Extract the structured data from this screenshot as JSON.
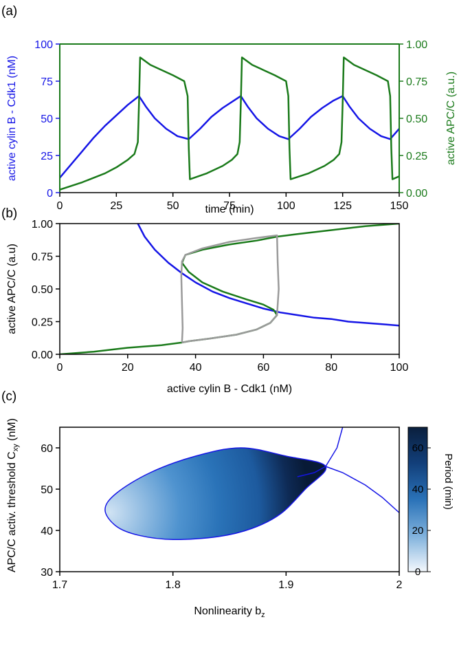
{
  "colors": {
    "blue": "#1515e6",
    "green": "#1a7a1a",
    "gray": "#9a9a9a",
    "axis": "#000000"
  },
  "chart_data": [
    {
      "panel": "(a)",
      "type": "line",
      "xlabel": "time (min)",
      "ylabel_left": "active cylin B - Cdk1 (nM)",
      "ylabel_right": "active APC/C (a.u.)",
      "xlim": [
        0,
        150
      ],
      "ylim_left": [
        0,
        100
      ],
      "ylim_right": [
        0,
        1
      ],
      "x_ticks": [
        "0",
        "25",
        "50",
        "75",
        "100",
        "125",
        "150"
      ],
      "y_ticks_left": [
        "0",
        "25",
        "50",
        "75",
        "100"
      ],
      "y_ticks_right": [
        "0.00",
        "0.25",
        "0.50",
        "0.75",
        "1.00"
      ],
      "series": [
        {
          "axis": "left",
          "color": "blue",
          "x": [
            0,
            5,
            10,
            15,
            20,
            25,
            30,
            35,
            38,
            42,
            47,
            52,
            57,
            62,
            67,
            72,
            77,
            80,
            83,
            87,
            92,
            97,
            101,
            106,
            111,
            116,
            121,
            125,
            128,
            132,
            137,
            142,
            146,
            150
          ],
          "y": [
            10,
            19,
            28,
            37,
            45,
            52,
            59,
            65,
            58,
            50,
            43,
            38,
            36,
            43,
            51,
            57,
            62,
            65,
            58,
            50,
            43,
            38,
            36,
            43,
            51,
            57,
            62,
            65,
            58,
            50,
            43,
            38,
            36,
            43
          ]
        },
        {
          "axis": "right",
          "color": "green",
          "x": [
            0,
            10,
            20,
            25,
            30,
            33,
            34.5,
            35,
            35.5,
            40,
            50,
            55,
            56.5,
            57,
            57.5,
            65,
            72,
            76,
            78.5,
            79.5,
            80,
            80.5,
            85,
            95,
            100,
            101,
            101.5,
            102,
            110,
            117,
            121,
            123.5,
            124.5,
            125,
            125.5,
            130,
            140,
            145,
            146,
            146.5,
            147,
            150
          ],
          "y": [
            0.02,
            0.07,
            0.13,
            0.17,
            0.22,
            0.26,
            0.34,
            0.6,
            0.91,
            0.86,
            0.79,
            0.75,
            0.65,
            0.3,
            0.09,
            0.13,
            0.18,
            0.22,
            0.26,
            0.34,
            0.6,
            0.91,
            0.86,
            0.79,
            0.75,
            0.65,
            0.3,
            0.09,
            0.13,
            0.18,
            0.22,
            0.26,
            0.34,
            0.6,
            0.91,
            0.86,
            0.79,
            0.75,
            0.65,
            0.3,
            0.09,
            0.11
          ]
        }
      ]
    },
    {
      "panel": "(b)",
      "type": "line",
      "xlabel": "active cylin B - Cdk1 (nM)",
      "ylabel": "active APC/C (a.u)",
      "xlim": [
        0,
        100
      ],
      "ylim": [
        0,
        1
      ],
      "x_ticks": [
        "0",
        "20",
        "40",
        "60",
        "80",
        "100"
      ],
      "y_ticks": [
        "0.00",
        "0.25",
        "0.50",
        "0.75",
        "1.00"
      ],
      "series": [
        {
          "color": "blue",
          "x": [
            23,
            25,
            28,
            32,
            36,
            40,
            45,
            50,
            55,
            60,
            65,
            70,
            75,
            80,
            85,
            90,
            95,
            100
          ],
          "y": [
            1.0,
            0.9,
            0.8,
            0.7,
            0.62,
            0.55,
            0.48,
            0.43,
            0.39,
            0.35,
            0.32,
            0.3,
            0.28,
            0.27,
            0.25,
            0.24,
            0.23,
            0.22
          ]
        },
        {
          "color": "green",
          "x": [
            0,
            10,
            20,
            30,
            36,
            38,
            44,
            52,
            58,
            62,
            64,
            63,
            60,
            55,
            48,
            42,
            38,
            36,
            37,
            42,
            50,
            58,
            64,
            70,
            80,
            90,
            100
          ],
          "y": [
            0.0,
            0.02,
            0.05,
            0.07,
            0.09,
            0.1,
            0.12,
            0.15,
            0.19,
            0.24,
            0.3,
            0.34,
            0.38,
            0.42,
            0.48,
            0.55,
            0.63,
            0.7,
            0.76,
            0.8,
            0.84,
            0.87,
            0.9,
            0.92,
            0.95,
            0.98,
            1.0
          ]
        },
        {
          "color": "gray",
          "x": [
            36,
            38,
            44,
            52,
            58,
            62,
            64,
            64.5,
            64.2,
            64,
            58,
            50,
            42,
            37,
            36,
            35.8,
            36,
            36.2,
            36
          ],
          "y": [
            0.09,
            0.1,
            0.12,
            0.15,
            0.19,
            0.24,
            0.3,
            0.5,
            0.7,
            0.91,
            0.89,
            0.86,
            0.81,
            0.76,
            0.71,
            0.6,
            0.4,
            0.2,
            0.09
          ]
        }
      ]
    },
    {
      "panel": "(c)",
      "type": "heatmap",
      "xlabel": "Nonlinearity b",
      "xlabel_sub": "z",
      "ylabel": "APC/C activ. threshold C",
      "ylabel_sub": "xy",
      "ylabel_unit": " (nM)",
      "xlim": [
        1.7,
        2.0
      ],
      "ylim": [
        30,
        65
      ],
      "x_ticks": [
        "1.7",
        "1.8",
        "1.9",
        "2"
      ],
      "y_ticks": [
        "30",
        "40",
        "50",
        "60"
      ],
      "colorbar_label": "Period (min)",
      "colorbar_ticks": [
        "0",
        "20",
        "40",
        "60"
      ],
      "colorbar_range": [
        0,
        70
      ],
      "oscillation_region": {
        "x": [
          1.74,
          1.75,
          1.78,
          1.82,
          1.86,
          1.9,
          1.935,
          1.917,
          1.895,
          1.87,
          1.84,
          1.8,
          1.77,
          1.75,
          1.74
        ],
        "y": [
          45,
          49,
          54,
          58,
          60,
          58,
          55.5,
          50,
          44,
          40.5,
          38.5,
          37.8,
          38.8,
          41,
          45
        ]
      },
      "boundary_curves": [
        {
          "x": [
            1.91,
            1.925,
            1.935,
            1.945,
            1.95
          ],
          "y": [
            53,
            54,
            55.5,
            60,
            65
          ]
        },
        {
          "x": [
            1.935,
            1.95,
            1.97,
            1.985,
            2.0
          ],
          "y": [
            55.5,
            54,
            51,
            48,
            44.3
          ]
        }
      ]
    }
  ]
}
